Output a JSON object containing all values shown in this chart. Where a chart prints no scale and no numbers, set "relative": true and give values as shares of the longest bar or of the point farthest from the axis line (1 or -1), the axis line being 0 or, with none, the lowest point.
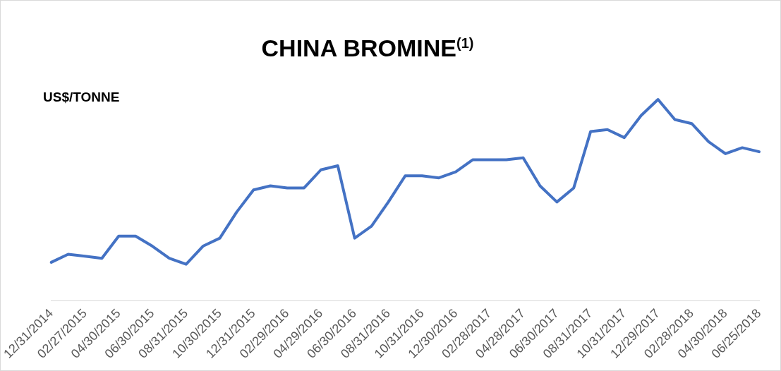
{
  "chart_data": {
    "type": "line",
    "title": "CHINA BROMINE$^{(1)}$",
    "ylabel": "US$/TONNE",
    "relative": true,
    "legend": false,
    "grid": false,
    "marker": "none",
    "line_style": "solid",
    "categories": [
      "12/31/2014",
      null,
      "02/27/2015",
      null,
      "04/30/2015",
      null,
      "06/30/2015",
      null,
      "08/31/2015",
      null,
      "10/30/2015",
      null,
      "12/31/2015",
      null,
      "02/29/2016",
      null,
      "04/29/2016",
      null,
      "06/30/2016",
      null,
      "08/31/2016",
      null,
      "10/31/2016",
      null,
      "12/30/2016",
      null,
      "02/28/2017",
      null,
      "04/28/2017",
      null,
      "06/30/2017",
      null,
      "08/31/2017",
      null,
      "10/31/2017",
      null,
      "12/29/2017",
      null,
      "02/28/2018",
      null,
      "04/30/2018",
      null,
      "06/25/2018"
    ],
    "series": [
      {
        "color": "#4472c4",
        "values": [
          0.19,
          0.23,
          0.22,
          0.21,
          0.32,
          0.32,
          0.27,
          0.21,
          0.18,
          0.27,
          0.31,
          0.44,
          0.55,
          0.57,
          0.56,
          0.56,
          0.65,
          0.67,
          0.31,
          0.37,
          0.49,
          0.62,
          0.62,
          0.61,
          0.64,
          0.7,
          0.7,
          0.7,
          0.71,
          0.57,
          0.49,
          0.56,
          0.84,
          0.85,
          0.81,
          0.92,
          1,
          0.9,
          0.88,
          0.79,
          0.73,
          0.76,
          0.74
        ]
      }
    ]
  }
}
